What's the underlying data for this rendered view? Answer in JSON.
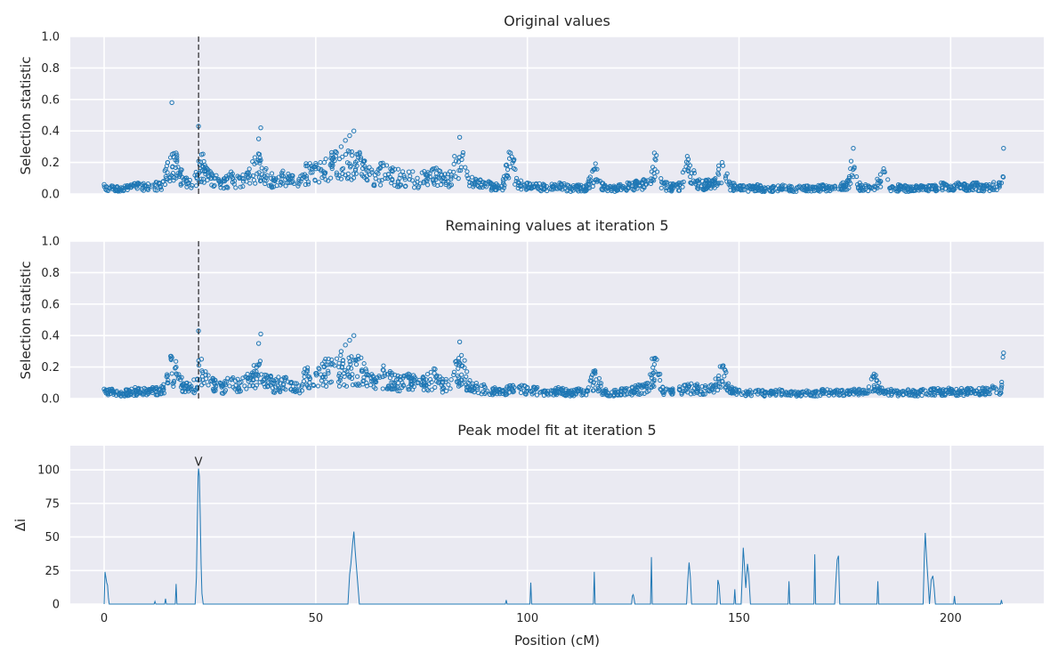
{
  "colors": {
    "panel_background": "#eaeaf2",
    "grid": "#ffffff",
    "series": "#1f77b4",
    "marker_line": "#000000"
  },
  "marker_position": 22.3,
  "panels": [
    {
      "title": "Original values",
      "ylabel": "Selection statistic"
    },
    {
      "title": "Remaining values at iteration 5",
      "ylabel": "Selection statistic"
    },
    {
      "title": "Peak model fit at iteration 5",
      "ylabel": "Δi",
      "peak_label": "V"
    }
  ],
  "x_axis": {
    "label": "Position (cM)"
  },
  "chart_data": [
    {
      "type": "scatter",
      "title": "Original values",
      "ylabel": "Selection statistic",
      "xlim": [
        -8,
        222
      ],
      "ylim": [
        0,
        1
      ],
      "xticks": [
        0,
        50,
        100,
        150,
        200
      ],
      "yticks": [
        0.0,
        0.2,
        0.4,
        0.6,
        0.8,
        1.0
      ],
      "ytick_labels": [
        "0.0",
        "0.2",
        "0.4",
        "0.6",
        "0.8",
        "1.0"
      ],
      "grid": true,
      "vertical_line_x": 22.3,
      "x": [
        0,
        2,
        4,
        6,
        8,
        10,
        12,
        14,
        15,
        16,
        17,
        18,
        20,
        22,
        22.3,
        23,
        24,
        26,
        28,
        30,
        32,
        34,
        36,
        36.5,
        37,
        38,
        40,
        42,
        44,
        46,
        48,
        50,
        52,
        54,
        56,
        57,
        58,
        59,
        60,
        62,
        64,
        66,
        68,
        70,
        72,
        74,
        76,
        78,
        80,
        82,
        84,
        86,
        88,
        90,
        92,
        94,
        96,
        98,
        100,
        102,
        104,
        106,
        108,
        110,
        112,
        114,
        116,
        118,
        120,
        122,
        124,
        126,
        128,
        130,
        132,
        134,
        136,
        138,
        140,
        142,
        144,
        146,
        148,
        150,
        152,
        154,
        156,
        158,
        160,
        162,
        164,
        166,
        168,
        170,
        172,
        174,
        176,
        177,
        178,
        180,
        182,
        184,
        186,
        188,
        190,
        192,
        194,
        196,
        198,
        200,
        202,
        204,
        206,
        208,
        210,
        212,
        212.5
      ],
      "y": [
        0.06,
        0.05,
        0.04,
        0.05,
        0.06,
        0.05,
        0.06,
        0.08,
        0.2,
        0.58,
        0.26,
        0.14,
        0.07,
        0.12,
        0.43,
        0.25,
        0.15,
        0.1,
        0.08,
        0.12,
        0.1,
        0.13,
        0.2,
        0.35,
        0.42,
        0.15,
        0.1,
        0.12,
        0.1,
        0.08,
        0.18,
        0.16,
        0.2,
        0.22,
        0.3,
        0.34,
        0.37,
        0.4,
        0.25,
        0.15,
        0.12,
        0.18,
        0.15,
        0.12,
        0.14,
        0.1,
        0.12,
        0.16,
        0.1,
        0.12,
        0.36,
        0.1,
        0.08,
        0.07,
        0.06,
        0.05,
        0.26,
        0.07,
        0.07,
        0.06,
        0.05,
        0.05,
        0.06,
        0.04,
        0.05,
        0.05,
        0.16,
        0.05,
        0.04,
        0.05,
        0.06,
        0.07,
        0.08,
        0.26,
        0.07,
        0.05,
        0.06,
        0.22,
        0.08,
        0.07,
        0.08,
        0.2,
        0.06,
        0.05,
        0.04,
        0.05,
        0.04,
        0.04,
        0.05,
        0.04,
        0.04,
        0.05,
        0.04,
        0.05,
        0.04,
        0.05,
        0.08,
        0.29,
        0.06,
        0.05,
        0.05,
        0.14,
        0.04,
        0.05,
        0.04,
        0.05,
        0.04,
        0.05,
        0.06,
        0.05,
        0.06,
        0.05,
        0.06,
        0.05,
        0.06,
        0.07,
        0.29
      ]
    },
    {
      "type": "scatter",
      "title": "Remaining values at iteration 5",
      "ylabel": "Selection statistic",
      "xlim": [
        -8,
        222
      ],
      "ylim": [
        0,
        1
      ],
      "xticks": [
        0,
        50,
        100,
        150,
        200
      ],
      "yticks": [
        0.0,
        0.2,
        0.4,
        0.6,
        0.8,
        1.0
      ],
      "ytick_labels": [
        "0.0",
        "0.2",
        "0.4",
        "0.6",
        "0.8",
        "1.0"
      ],
      "grid": true,
      "vertical_line_x": 22.3,
      "x": [
        0,
        2,
        4,
        6,
        8,
        10,
        12,
        14,
        16,
        17,
        18,
        20,
        22,
        22.3,
        23,
        24,
        26,
        28,
        30,
        32,
        34,
        36,
        36.5,
        37,
        38,
        40,
        42,
        44,
        46,
        48,
        50,
        52,
        54,
        56,
        57,
        58,
        59,
        60,
        62,
        64,
        66,
        68,
        70,
        72,
        74,
        76,
        78,
        80,
        82,
        84,
        86,
        88,
        90,
        92,
        94,
        96,
        98,
        100,
        102,
        104,
        106,
        108,
        110,
        112,
        114,
        116,
        118,
        120,
        122,
        124,
        126,
        128,
        130,
        132,
        134,
        136,
        138,
        140,
        142,
        144,
        146,
        148,
        150,
        152,
        154,
        156,
        158,
        160,
        162,
        164,
        166,
        168,
        170,
        172,
        174,
        176,
        178,
        180,
        182,
        184,
        186,
        188,
        190,
        192,
        194,
        196,
        198,
        200,
        202,
        204,
        206,
        208,
        210,
        212,
        212.5
      ],
      "y": [
        0.06,
        0.05,
        0.04,
        0.05,
        0.06,
        0.05,
        0.06,
        0.07,
        0.26,
        0.2,
        0.12,
        0.07,
        0.12,
        0.43,
        0.25,
        0.15,
        0.1,
        0.08,
        0.12,
        0.1,
        0.13,
        0.2,
        0.35,
        0.41,
        0.15,
        0.1,
        0.12,
        0.1,
        0.08,
        0.18,
        0.16,
        0.2,
        0.22,
        0.3,
        0.34,
        0.37,
        0.4,
        0.25,
        0.15,
        0.12,
        0.18,
        0.15,
        0.12,
        0.14,
        0.1,
        0.12,
        0.16,
        0.1,
        0.12,
        0.36,
        0.1,
        0.08,
        0.07,
        0.06,
        0.05,
        0.07,
        0.07,
        0.07,
        0.06,
        0.05,
        0.05,
        0.06,
        0.04,
        0.05,
        0.05,
        0.16,
        0.05,
        0.04,
        0.05,
        0.06,
        0.07,
        0.08,
        0.25,
        0.07,
        0.05,
        0.06,
        0.08,
        0.08,
        0.07,
        0.08,
        0.2,
        0.06,
        0.05,
        0.04,
        0.05,
        0.04,
        0.04,
        0.05,
        0.04,
        0.04,
        0.05,
        0.04,
        0.05,
        0.04,
        0.05,
        0.05,
        0.05,
        0.05,
        0.14,
        0.04,
        0.05,
        0.04,
        0.05,
        0.04,
        0.05,
        0.06,
        0.05,
        0.06,
        0.05,
        0.06,
        0.05,
        0.06,
        0.07,
        0.07,
        0.29
      ]
    },
    {
      "type": "line",
      "title": "Peak model fit at iteration 5",
      "ylabel": "Δi",
      "xlabel": "Position (cM)",
      "xlim": [
        -8,
        222
      ],
      "ylim": [
        0,
        118
      ],
      "xticks": [
        0,
        50,
        100,
        150,
        200
      ],
      "yticks": [
        0,
        25,
        50,
        75,
        100
      ],
      "ytick_labels": [
        "0",
        "25",
        "50",
        "75",
        "100"
      ],
      "grid": true,
      "peak_label": "V",
      "peak_label_x": 22.3,
      "x": [
        0,
        0.2,
        0.4,
        0.6,
        0.8,
        1,
        1.2,
        11.8,
        12,
        12.2,
        14.3,
        14.5,
        14.7,
        16.8,
        17,
        17.2,
        21.5,
        21.8,
        22,
        22.2,
        22.3,
        22.5,
        22.7,
        22.9,
        23.1,
        23.4,
        57.6,
        58,
        58.3,
        58.7,
        59,
        59.3,
        59.8,
        60.3,
        94.8,
        95,
        95.2,
        100.6,
        100.8,
        101,
        115.6,
        115.8,
        116,
        124.6,
        124.8,
        125,
        125.2,
        125.4,
        129.1,
        129.3,
        129.5,
        137.6,
        137.9,
        138.2,
        138.5,
        138.8,
        144.8,
        145,
        145.3,
        145.6,
        148.8,
        149,
        149.2,
        150.5,
        150.8,
        151,
        151.3,
        151.6,
        152,
        152.3,
        152.7,
        161.6,
        161.8,
        162,
        167.7,
        167.9,
        168.1,
        172.6,
        172.9,
        173.2,
        173.5,
        173.8,
        182.6,
        182.8,
        183,
        193.5,
        193.8,
        194,
        194.3,
        194.6,
        195,
        195.4,
        195.8,
        196.1,
        196.4,
        196.8,
        200.7,
        200.9,
        201.1,
        211.8,
        212,
        212.2
      ],
      "y": [
        0,
        24,
        20,
        16,
        14,
        5,
        0,
        0,
        2,
        0,
        0,
        4,
        0,
        0,
        15,
        0,
        0,
        20,
        60,
        95,
        101,
        95,
        65,
        30,
        8,
        0,
        0,
        22,
        30,
        45,
        54,
        40,
        20,
        0,
        0,
        3,
        0,
        0,
        16,
        0,
        0,
        24,
        0,
        0,
        6,
        7,
        4,
        0,
        0,
        35,
        0,
        0,
        18,
        31,
        20,
        0,
        0,
        18,
        14,
        0,
        0,
        11,
        0,
        0,
        25,
        42,
        28,
        12,
        30,
        22,
        0,
        0,
        17,
        0,
        0,
        37,
        0,
        0,
        18,
        33,
        36,
        0,
        0,
        17,
        0,
        0,
        38,
        53,
        35,
        20,
        0,
        18,
        21,
        12,
        0,
        0,
        0,
        6,
        0,
        0,
        3,
        0
      ]
    }
  ]
}
